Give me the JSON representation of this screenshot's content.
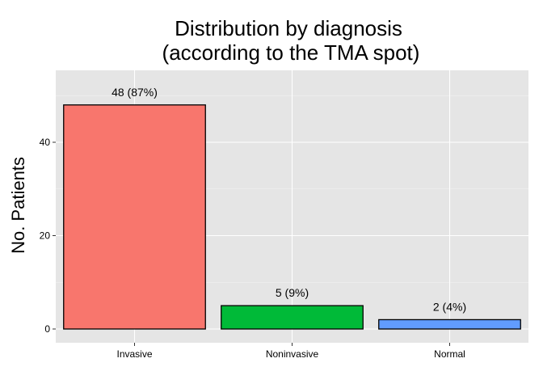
{
  "chart_data": {
    "type": "bar",
    "title_line1": "Distribution by diagnosis",
    "title_line2": "(according to the TMA spot)",
    "xlabel": "",
    "ylabel": "No. Patients",
    "categories": [
      "Invasive",
      "Noninvasive",
      "Normal"
    ],
    "values": [
      48,
      5,
      2
    ],
    "data_labels": [
      "48 (87%)",
      "5 (9%)",
      "2 (4%)"
    ],
    "colors": [
      "#f8766d",
      "#00ba38",
      "#619cff"
    ],
    "ylim": [
      0,
      55
    ],
    "yticks": [
      0,
      20,
      40
    ],
    "yticks_minor": [
      10,
      30,
      50
    ],
    "grid": true,
    "legend": "none"
  }
}
